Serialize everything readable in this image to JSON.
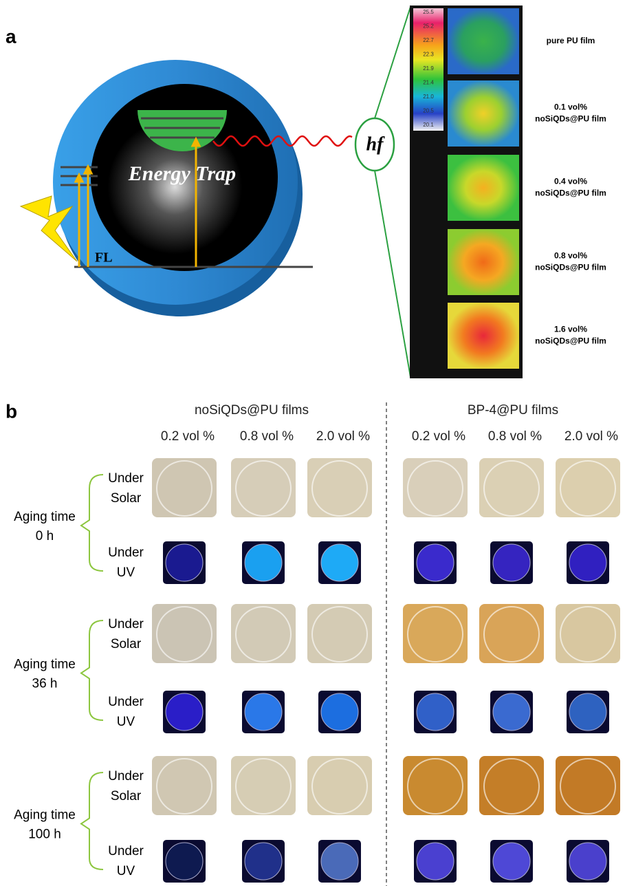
{
  "panel_a": {
    "label": "a",
    "center_text": "Energy Trap",
    "level_label": "FL",
    "emission": "hf",
    "colorbar_ticks": [
      "25.5",
      "25.2",
      "22.7",
      "22.3",
      "21.9",
      "21.4",
      "21.0",
      "20.5",
      "20.1"
    ],
    "films": [
      [
        "pure PU film"
      ],
      [
        "0.1 vol%",
        "noSiQDs@PU film"
      ],
      [
        "0.4 vol%",
        "noSiQDs@PU film"
      ],
      [
        "0.8 vol%",
        "noSiQDs@PU film"
      ],
      [
        "1.6 vol%",
        "noSiQDs@PU film"
      ]
    ]
  },
  "panel_b": {
    "label": "b",
    "groups": [
      "noSiQDs@PU films",
      "BP-4@PU films"
    ],
    "concentrations": [
      "0.2 vol %",
      "0.8 vol %",
      "2.0 vol %",
      "0.2 vol %",
      "0.8 vol %",
      "2.0 vol %"
    ],
    "aging_rows": [
      {
        "time": [
          "Aging time",
          "0 h"
        ],
        "conditions": [
          [
            "Under",
            "Solar"
          ],
          [
            "Under",
            "UV"
          ]
        ]
      },
      {
        "time": [
          "Aging time",
          "36 h"
        ],
        "conditions": [
          [
            "Under",
            "Solar"
          ],
          [
            "Under",
            "UV"
          ]
        ]
      },
      {
        "time": [
          "Aging time",
          "100 h"
        ],
        "conditions": [
          [
            "Under",
            "Solar"
          ],
          [
            "Under",
            "UV"
          ]
        ]
      }
    ]
  }
}
